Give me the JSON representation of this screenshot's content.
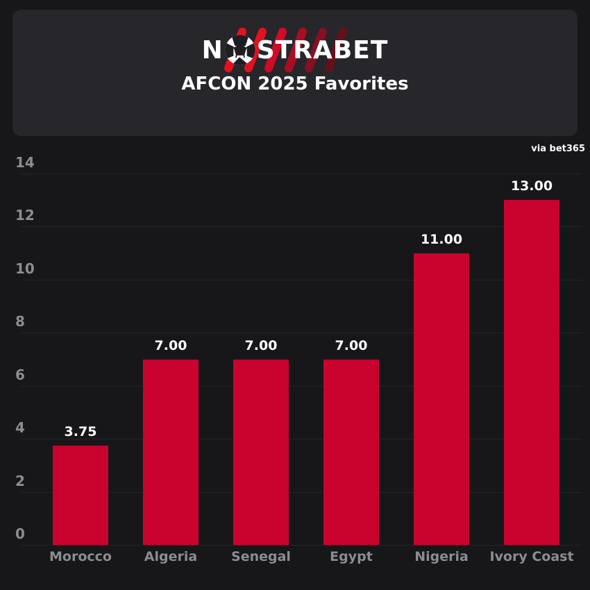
{
  "brand": {
    "prefix": "N",
    "suffix": "STRABET",
    "ball_icon": "soccer-ball-icon",
    "stripe_colors": [
      "#e8101f",
      "#e31220",
      "#cf0b26",
      "#a90d22",
      "#851020",
      "#62111b"
    ]
  },
  "header": {
    "title": "AFCON 2025 Favorites"
  },
  "attribution": {
    "text": "via bet365"
  },
  "colors": {
    "background": "#17171a",
    "panel": "#26262b",
    "grid": "#242429",
    "tick_text": "#8c8c91",
    "bar": "#c9032e",
    "value_text": "#ffffff"
  },
  "chart_data": {
    "type": "bar",
    "title": "AFCON 2025 Favorites",
    "source": "via bet365",
    "categories": [
      "Morocco",
      "Algeria",
      "Senegal",
      "Egypt",
      "Nigeria",
      "Ivory Coast"
    ],
    "values": [
      3.75,
      7.0,
      7.0,
      7.0,
      11.0,
      13.0
    ],
    "value_labels": [
      "3.75",
      "7.00",
      "7.00",
      "7.00",
      "11.00",
      "13.00"
    ],
    "xlabel": "",
    "ylabel": "",
    "ylim": [
      0,
      14
    ],
    "ytick_step": 2,
    "grid": true,
    "legend": false,
    "bar_color": "#c9032e"
  }
}
